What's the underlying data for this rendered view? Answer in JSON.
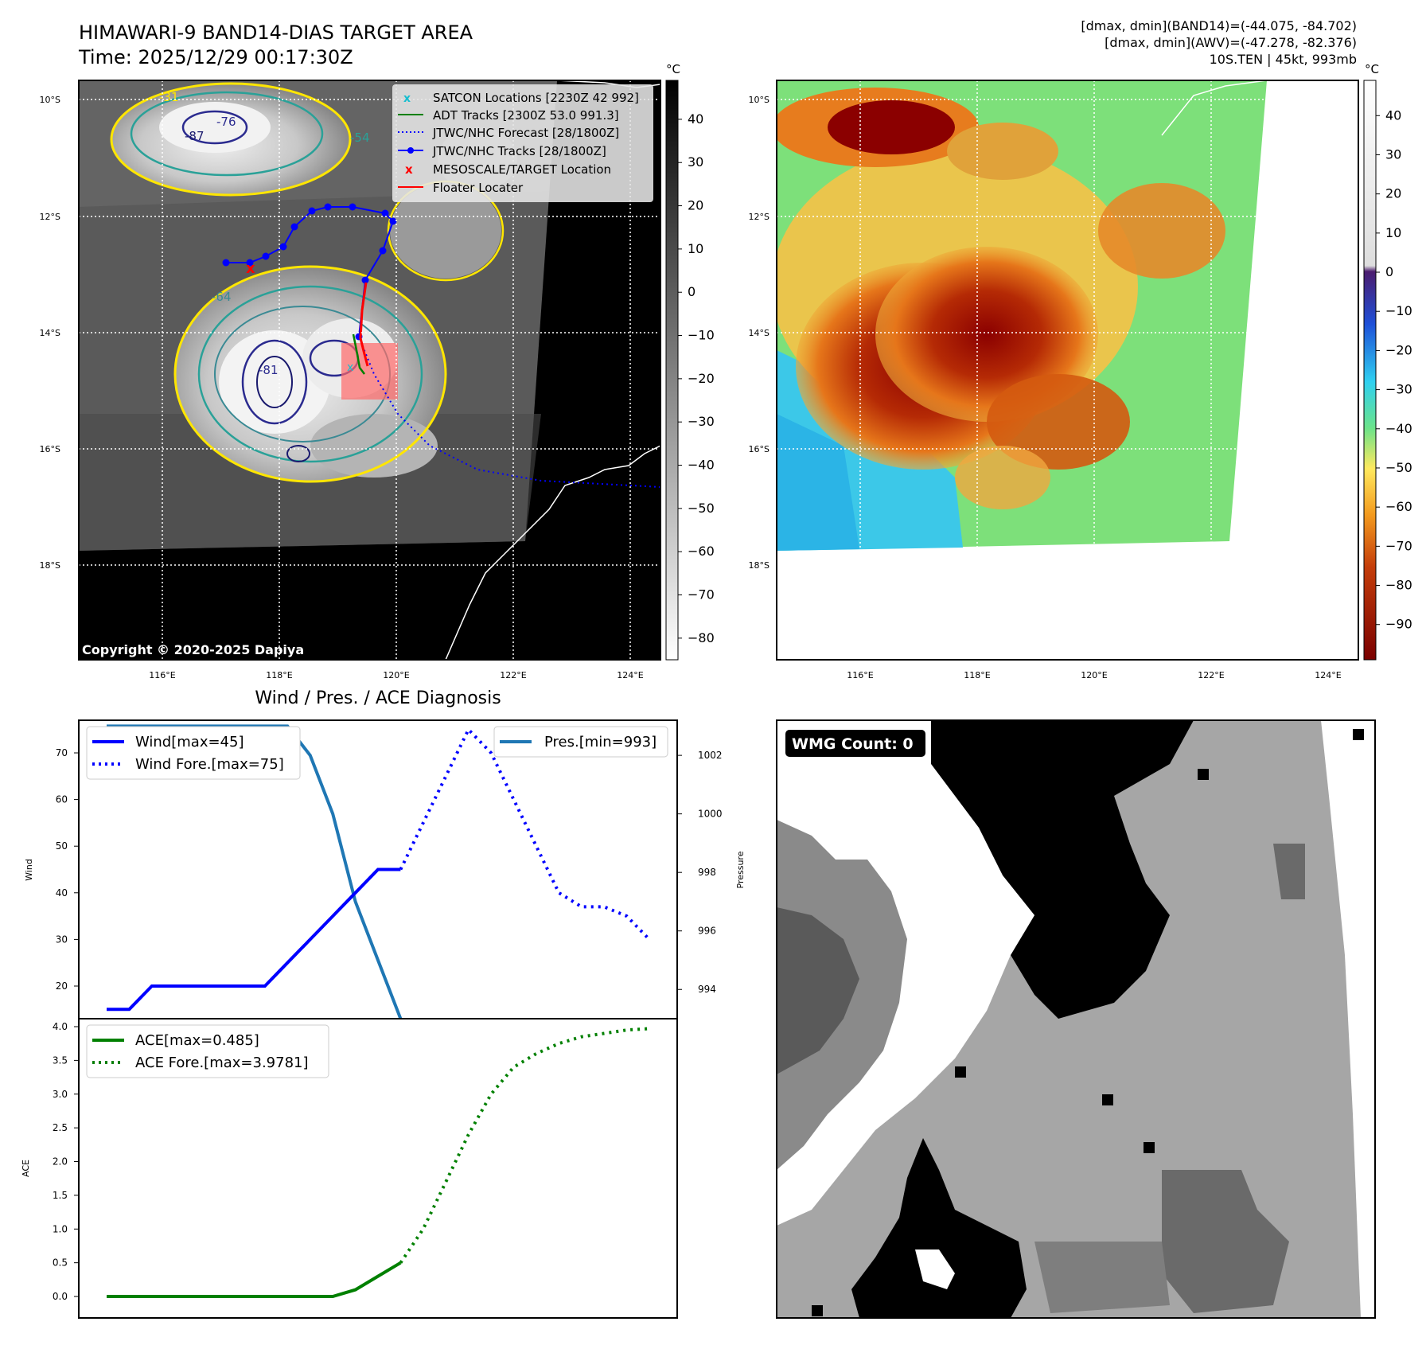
{
  "header": {
    "title": "HIMAWARI-9 BAND14-DIAS TARGET AREA",
    "time": "Time: 2025/12/29 00:17:30Z",
    "dm_band14": "[dmax, dmin](BAND14)=(-44.075, -84.702)",
    "dm_awv": "[dmax, dmin](AWV)=(-47.278, -82.376)",
    "storm": "10S.TEN | 45kt, 993mb"
  },
  "map": {
    "lat_labels": [
      "10°S",
      "12°S",
      "14°S",
      "16°S",
      "18°S"
    ],
    "lon_labels": [
      "116°E",
      "118°E",
      "120°E",
      "122°E",
      "124°E"
    ],
    "copyright": "Copyright © 2020-2025 Dapiya",
    "contour_labels": [
      "-31",
      "-54",
      "-64",
      "-76",
      "-81",
      "-87"
    ],
    "legend": [
      {
        "label": "SATCON Locations [2230Z 42 992]",
        "color": "#17becf"
      },
      {
        "label": "ADT Tracks [2300Z 53.0 991.3]",
        "color": "#008000"
      },
      {
        "label": "JTWC/NHC Forecast [28/1800Z]",
        "color": "#0000ff"
      },
      {
        "label": "JTWC/NHC Tracks [28/1800Z]",
        "color": "#0000ff"
      },
      {
        "label": "MESOSCALE/TARGET Location",
        "color": "#ff0000"
      },
      {
        "label": "Floater Locater",
        "color": "#ff0000"
      }
    ]
  },
  "colorbar_gray": {
    "unit": "°C",
    "ticks": [
      "40",
      "30",
      "20",
      "10",
      "0",
      "−10",
      "−20",
      "−30",
      "−40",
      "−50",
      "−60",
      "−70",
      "−80"
    ],
    "range": [
      -85,
      49
    ]
  },
  "colorbar_color": {
    "unit": "°C",
    "ticks": [
      "40",
      "30",
      "20",
      "10",
      "0",
      "−10",
      "−20",
      "−30",
      "−40",
      "−50",
      "−60",
      "−70",
      "−80",
      "−90"
    ],
    "range": [
      -99,
      49
    ]
  },
  "chart_data": [
    {
      "type": "line",
      "title": "Wind / Pres. / ACE Diagnosis",
      "ylabel": "Wind",
      "ylabel2": "Pressure",
      "ylim": [
        13,
        77
      ],
      "ylim2": [
        993,
        1003.2
      ],
      "yticks": [
        20,
        30,
        40,
        50,
        60,
        70
      ],
      "yticks2": [
        994,
        996,
        998,
        1000,
        1002
      ],
      "series": [
        {
          "name": "Wind[max=45]",
          "axis": "left",
          "style": "solid",
          "color": "#0000ff",
          "x": [
            0,
            1,
            2,
            3,
            4,
            5,
            6,
            7,
            8,
            9,
            10,
            11,
            12,
            13
          ],
          "values": [
            15,
            15,
            20,
            20,
            20,
            20,
            20,
            20,
            25,
            30,
            35,
            40,
            45,
            45
          ]
        },
        {
          "name": "Wind Fore.[max=75]",
          "axis": "left",
          "style": "dotted",
          "color": "#0000ff",
          "x": [
            13,
            14,
            15,
            16,
            17,
            18,
            19,
            20,
            21,
            22,
            23,
            24
          ],
          "values": [
            45,
            55,
            65,
            75,
            70,
            60,
            50,
            40,
            37,
            37,
            35,
            30
          ]
        },
        {
          "name": "Pres.[min=993]",
          "axis": "right",
          "style": "solid",
          "color": "#1f77b4",
          "x": [
            0,
            1,
            2,
            3,
            4,
            5,
            6,
            7,
            8,
            9,
            10,
            11,
            12,
            13
          ],
          "values": [
            1003,
            1003,
            1003,
            1003,
            1003,
            1003,
            1003,
            1003,
            1003,
            1002,
            1000,
            997,
            995,
            993
          ]
        }
      ]
    },
    {
      "type": "line",
      "ylabel": "ACE",
      "ylim": [
        -0.2,
        4.0
      ],
      "yticks": [
        0.0,
        0.5,
        1.0,
        1.5,
        2.0,
        2.5,
        3.0,
        3.5,
        4.0
      ],
      "series": [
        {
          "name": "ACE[max=0.485]",
          "style": "solid",
          "color": "#008000",
          "x": [
            0,
            1,
            2,
            3,
            4,
            5,
            6,
            7,
            8,
            9,
            10,
            11,
            12,
            13
          ],
          "values": [
            0,
            0,
            0,
            0,
            0,
            0,
            0,
            0,
            0,
            0,
            0,
            0.1,
            0.3,
            0.5
          ]
        },
        {
          "name": "ACE Fore.[max=3.9781]",
          "style": "dotted",
          "color": "#008000",
          "x": [
            13,
            14,
            15,
            16,
            17,
            18,
            19,
            20,
            21,
            22,
            23,
            24
          ],
          "values": [
            0.5,
            1.0,
            1.7,
            2.4,
            3.0,
            3.4,
            3.6,
            3.75,
            3.85,
            3.9,
            3.95,
            3.97
          ]
        }
      ]
    }
  ],
  "wmg": {
    "label": "WMG Count: 0"
  }
}
